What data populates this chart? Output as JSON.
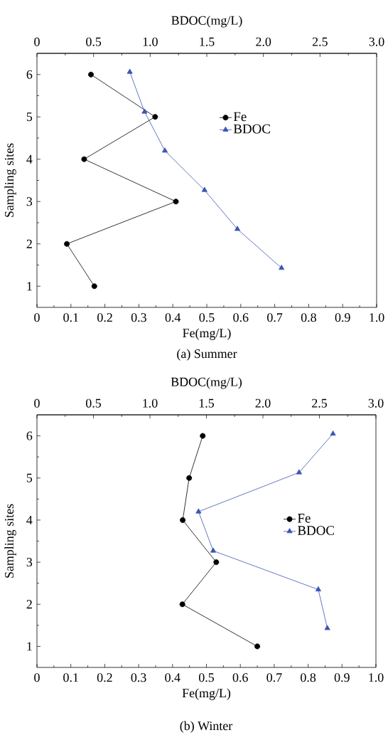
{
  "chart_data": [
    {
      "type": "line",
      "title": "(a) Summer",
      "xlabel": "Fe(mg/L)",
      "x2label": "BDOC(mg/L)",
      "ylabel": "Sampling sites",
      "xlim": [
        0,
        1
      ],
      "xticks": [
        0,
        0.1,
        0.2,
        0.3,
        0.4,
        0.5,
        0.6,
        0.7,
        0.8,
        0.9,
        {
          "value": 1,
          "label": "1.0"
        }
      ],
      "x2lim": [
        0,
        3
      ],
      "x2ticks": [
        0,
        0.5,
        {
          "value": 1,
          "label": "1.0"
        },
        1.5,
        {
          "value": 2,
          "label": "2.0"
        },
        2.5,
        {
          "value": 3,
          "label": "3.0"
        }
      ],
      "ylim": [
        0.5,
        6.5
      ],
      "yticks": [
        1,
        2,
        3,
        4,
        5,
        6
      ],
      "legend": "top right",
      "line_style": "solid",
      "series": [
        {
          "name": "Fe",
          "color": "#000000",
          "marker": "circle",
          "x": [
            0.159,
            0.348,
            0.139,
            0.409,
            0.088,
            0.169
          ],
          "values": [
            6,
            5,
            4,
            3,
            2,
            1
          ]
        },
        {
          "name": "BDOC",
          "color": "#3a55b4",
          "marker": "triangle",
          "axis": "x2",
          "x": [
            0.82,
            0.95,
            1.13,
            1.48,
            1.77,
            2.16
          ],
          "values": [
            6.06,
            5.12,
            4.2,
            3.27,
            2.35,
            1.43
          ]
        }
      ]
    },
    {
      "type": "line",
      "title": "(b) Winter",
      "xlabel": "Fe(mg/L)",
      "x2label": "BDOC(mg/L)",
      "ylabel": "Sampling sites",
      "xlim": [
        0,
        1
      ],
      "xticks": [
        0,
        0.1,
        0.2,
        0.3,
        0.4,
        0.5,
        0.6,
        0.7,
        0.8,
        0.9,
        {
          "value": 1,
          "label": "1.0"
        }
      ],
      "x2lim": [
        0,
        3
      ],
      "x2ticks": [
        0,
        0.5,
        {
          "value": 1,
          "label": "1.0"
        },
        1.5,
        {
          "value": 2,
          "label": "2.0"
        },
        2.5,
        {
          "value": 3,
          "label": "3.0"
        }
      ],
      "ylim": [
        0.5,
        6.5
      ],
      "yticks": [
        1,
        2,
        3,
        4,
        5,
        6
      ],
      "legend": "right",
      "line_style": "solid",
      "series": [
        {
          "name": "Fe",
          "color": "#000000",
          "marker": "circle",
          "x": [
            0.489,
            0.449,
            0.43,
            0.529,
            0.429,
            0.65
          ],
          "values": [
            6,
            5,
            4,
            3,
            2,
            1
          ]
        },
        {
          "name": "BDOC",
          "color": "#3a55b4",
          "marker": "triangle",
          "axis": "x2",
          "x": [
            2.62,
            2.32,
            1.43,
            1.56,
            2.49,
            2.57
          ],
          "values": [
            6.05,
            5.13,
            4.2,
            3.27,
            2.35,
            1.43
          ]
        }
      ]
    }
  ]
}
